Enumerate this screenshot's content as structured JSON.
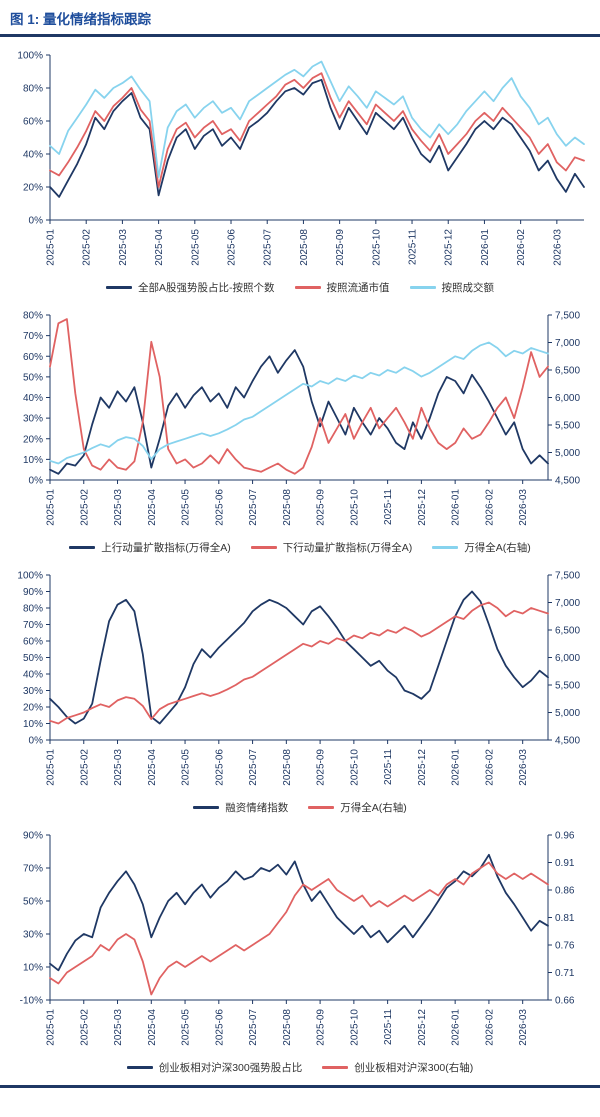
{
  "header": {
    "title": "图 1: 量化情绪指标跟踪"
  },
  "colors": {
    "navy": "#1F3864",
    "red": "#E06262",
    "lightblue": "#87D3EE",
    "title_blue": "#1F4E9C",
    "axis": "#1F3864"
  },
  "chart_data": [
    {
      "type": "line",
      "points_per_month": 4,
      "x_labels": [
        "2025-01",
        "2025-02",
        "2025-03",
        "2025-04",
        "2025-05",
        "2025-06",
        "2025-07",
        "2025-08",
        "2025-09",
        "2025-10",
        "2025-11",
        "2025-12",
        "2026-01",
        "2026-02",
        "2026-03"
      ],
      "left_axis": {
        "min": 0,
        "max": 100,
        "tick_values": [
          0,
          20,
          40,
          60,
          80,
          100
        ],
        "tick_labels": [
          "0%",
          "20%",
          "40%",
          "60%",
          "80%",
          "100%"
        ]
      },
      "series": [
        {
          "name": "全部A股强势股占比-按照个数",
          "color": "#1F3864",
          "axis": "left",
          "values": [
            20,
            14,
            24,
            34,
            46,
            62,
            55,
            66,
            72,
            77,
            62,
            55,
            15,
            36,
            50,
            55,
            43,
            51,
            55,
            45,
            50,
            43,
            56,
            60,
            65,
            72,
            78,
            80,
            76,
            83,
            85,
            68,
            55,
            68,
            60,
            52,
            65,
            60,
            55,
            62,
            50,
            40,
            35,
            45,
            30,
            38,
            46,
            55,
            60,
            55,
            62,
            58,
            50,
            42,
            30,
            36,
            25,
            17,
            28,
            20
          ]
        },
        {
          "name": "按照流通市值",
          "color": "#E06262",
          "axis": "left",
          "values": [
            30,
            27,
            35,
            44,
            54,
            66,
            60,
            69,
            74,
            80,
            67,
            60,
            20,
            43,
            55,
            59,
            50,
            56,
            60,
            52,
            55,
            48,
            60,
            65,
            70,
            75,
            82,
            85,
            80,
            86,
            89,
            74,
            62,
            72,
            65,
            58,
            70,
            65,
            60,
            66,
            55,
            48,
            42,
            52,
            40,
            46,
            52,
            60,
            65,
            60,
            68,
            62,
            56,
            50,
            40,
            46,
            35,
            30,
            38,
            36
          ]
        },
        {
          "name": "按照成交额",
          "color": "#87D3EE",
          "axis": "left",
          "values": [
            45,
            40,
            54,
            62,
            70,
            79,
            74,
            80,
            83,
            87,
            79,
            72,
            26,
            56,
            66,
            70,
            62,
            68,
            72,
            65,
            68,
            61,
            72,
            76,
            80,
            84,
            88,
            91,
            87,
            93,
            96,
            84,
            72,
            81,
            75,
            68,
            78,
            74,
            70,
            75,
            62,
            55,
            50,
            58,
            52,
            58,
            66,
            72,
            78,
            72,
            80,
            86,
            75,
            68,
            58,
            62,
            52,
            45,
            50,
            46
          ]
        }
      ]
    },
    {
      "type": "line",
      "points_per_month": 4,
      "x_labels": [
        "2025-01",
        "2025-02",
        "2025-03",
        "2025-04",
        "2025-05",
        "2025-06",
        "2025-07",
        "2025-08",
        "2025-09",
        "2025-10",
        "2025-11",
        "2025-12",
        "2026-01",
        "2026-02",
        "2026-03"
      ],
      "left_axis": {
        "min": 0,
        "max": 80,
        "tick_values": [
          0,
          10,
          20,
          30,
          40,
          50,
          60,
          70,
          80
        ],
        "tick_labels": [
          "0%",
          "10%",
          "20%",
          "30%",
          "40%",
          "50%",
          "60%",
          "70%",
          "80%"
        ]
      },
      "right_axis": {
        "min": 4500,
        "max": 7500,
        "tick_values": [
          4500,
          5000,
          5500,
          6000,
          6500,
          7000,
          7500
        ],
        "tick_labels": [
          "4,500",
          "5,000",
          "5,500",
          "6,000",
          "6,500",
          "7,000",
          "7,500"
        ]
      },
      "series": [
        {
          "name": "上行动量扩散指标(万得全A)",
          "color": "#1F3864",
          "axis": "left",
          "values": [
            5,
            3,
            8,
            7,
            12,
            27,
            40,
            35,
            43,
            38,
            45,
            28,
            6,
            20,
            36,
            42,
            35,
            41,
            45,
            38,
            42,
            35,
            45,
            40,
            48,
            55,
            60,
            52,
            58,
            63,
            55,
            38,
            26,
            38,
            30,
            22,
            35,
            28,
            22,
            30,
            25,
            18,
            15,
            28,
            20,
            30,
            42,
            50,
            48,
            42,
            51,
            45,
            38,
            30,
            22,
            28,
            15,
            8,
            12,
            8
          ]
        },
        {
          "name": "下行动量扩散指标(万得全A)",
          "color": "#E06262",
          "axis": "left",
          "values": [
            55,
            76,
            78,
            42,
            15,
            7,
            5,
            10,
            6,
            5,
            9,
            28,
            67,
            50,
            15,
            8,
            10,
            6,
            8,
            12,
            8,
            15,
            10,
            6,
            5,
            4,
            6,
            8,
            5,
            3,
            6,
            16,
            30,
            18,
            25,
            32,
            20,
            28,
            35,
            25,
            30,
            35,
            28,
            20,
            35,
            25,
            18,
            15,
            18,
            25,
            20,
            22,
            28,
            35,
            40,
            30,
            45,
            62,
            50,
            55
          ]
        },
        {
          "name": "万得全A(右轴)",
          "color": "#87D3EE",
          "axis": "right",
          "values": [
            4850,
            4800,
            4900,
            4950,
            5000,
            5080,
            5150,
            5100,
            5220,
            5280,
            5250,
            5120,
            4880,
            5060,
            5150,
            5200,
            5250,
            5300,
            5350,
            5300,
            5350,
            5420,
            5500,
            5600,
            5650,
            5750,
            5850,
            5950,
            6050,
            6150,
            6250,
            6200,
            6300,
            6250,
            6350,
            6300,
            6400,
            6350,
            6450,
            6400,
            6500,
            6450,
            6550,
            6480,
            6380,
            6450,
            6550,
            6650,
            6750,
            6700,
            6850,
            6950,
            7000,
            6900,
            6750,
            6850,
            6800,
            6900,
            6850,
            6800
          ]
        }
      ]
    },
    {
      "type": "line",
      "points_per_month": 4,
      "x_labels": [
        "2025-01",
        "2025-02",
        "2025-03",
        "2025-04",
        "2025-05",
        "2025-06",
        "2025-07",
        "2025-08",
        "2025-09",
        "2025-10",
        "2025-11",
        "2025-12",
        "2026-01",
        "2026-02",
        "2026-03"
      ],
      "left_axis": {
        "min": 0,
        "max": 100,
        "tick_values": [
          0,
          10,
          20,
          30,
          40,
          50,
          60,
          70,
          80,
          90,
          100
        ],
        "tick_labels": [
          "0%",
          "10%",
          "20%",
          "30%",
          "40%",
          "50%",
          "60%",
          "70%",
          "80%",
          "90%",
          "100%"
        ]
      },
      "right_axis": {
        "min": 4500,
        "max": 7500,
        "tick_values": [
          4500,
          5000,
          5500,
          6000,
          6500,
          7000,
          7500
        ],
        "tick_labels": [
          "4,500",
          "5,000",
          "5,500",
          "6,000",
          "6,500",
          "7,000",
          "7,500"
        ]
      },
      "series": [
        {
          "name": "融资情绪指数",
          "color": "#1F3864",
          "axis": "left",
          "values": [
            25,
            20,
            14,
            10,
            13,
            22,
            48,
            72,
            82,
            85,
            78,
            52,
            14,
            10,
            16,
            22,
            32,
            46,
            55,
            50,
            56,
            61,
            66,
            71,
            78,
            82,
            85,
            83,
            80,
            75,
            70,
            78,
            81,
            75,
            68,
            60,
            55,
            50,
            45,
            48,
            42,
            38,
            30,
            28,
            25,
            30,
            45,
            60,
            75,
            85,
            90,
            84,
            70,
            55,
            45,
            38,
            32,
            36,
            42,
            38
          ]
        },
        {
          "name": "万得全A(右轴)",
          "color": "#E06262",
          "axis": "right",
          "values": [
            4850,
            4800,
            4900,
            4950,
            5000,
            5080,
            5150,
            5100,
            5220,
            5280,
            5250,
            5120,
            4880,
            5060,
            5150,
            5200,
            5250,
            5300,
            5350,
            5300,
            5350,
            5420,
            5500,
            5600,
            5650,
            5750,
            5850,
            5950,
            6050,
            6150,
            6250,
            6200,
            6300,
            6250,
            6350,
            6300,
            6400,
            6350,
            6450,
            6400,
            6500,
            6450,
            6550,
            6480,
            6380,
            6450,
            6550,
            6650,
            6750,
            6700,
            6850,
            6950,
            7000,
            6900,
            6750,
            6850,
            6800,
            6900,
            6850,
            6800
          ]
        }
      ]
    },
    {
      "type": "line",
      "points_per_month": 4,
      "x_labels": [
        "2025-01",
        "2025-02",
        "2025-03",
        "2025-04",
        "2025-05",
        "2025-06",
        "2025-07",
        "2025-08",
        "2025-09",
        "2025-10",
        "2025-11",
        "2025-12",
        "2026-01",
        "2026-02",
        "2026-03"
      ],
      "left_axis": {
        "min": -10,
        "max": 90,
        "tick_values": [
          -10,
          10,
          30,
          50,
          70,
          90
        ],
        "tick_labels": [
          "-10%",
          "10%",
          "30%",
          "50%",
          "70%",
          "90%"
        ]
      },
      "right_axis": {
        "min": 0.66,
        "max": 0.96,
        "tick_values": [
          0.66,
          0.71,
          0.76,
          0.81,
          0.86,
          0.91,
          0.96
        ],
        "tick_labels": [
          "0.66",
          "0.71",
          "0.76",
          "0.81",
          "0.86",
          "0.91",
          "0.96"
        ]
      },
      "series": [
        {
          "name": "创业板相对沪深300强势股占比",
          "color": "#1F3864",
          "axis": "left",
          "values": [
            12,
            8,
            18,
            26,
            30,
            28,
            46,
            55,
            62,
            68,
            60,
            48,
            28,
            40,
            50,
            55,
            48,
            55,
            60,
            52,
            58,
            62,
            68,
            63,
            65,
            70,
            68,
            72,
            66,
            74,
            60,
            50,
            56,
            48,
            40,
            35,
            30,
            35,
            28,
            32,
            25,
            30,
            35,
            28,
            35,
            42,
            50,
            58,
            62,
            68,
            65,
            70,
            78,
            65,
            55,
            48,
            40,
            32,
            38,
            35
          ]
        },
        {
          "name": "创业板相对沪深300(右轴)",
          "color": "#E06262",
          "axis": "right",
          "values": [
            0.7,
            0.69,
            0.71,
            0.72,
            0.73,
            0.74,
            0.76,
            0.75,
            0.77,
            0.78,
            0.77,
            0.73,
            0.67,
            0.7,
            0.72,
            0.73,
            0.72,
            0.73,
            0.74,
            0.73,
            0.74,
            0.75,
            0.76,
            0.75,
            0.76,
            0.77,
            0.78,
            0.8,
            0.82,
            0.85,
            0.87,
            0.86,
            0.87,
            0.88,
            0.86,
            0.85,
            0.84,
            0.85,
            0.83,
            0.84,
            0.83,
            0.84,
            0.85,
            0.84,
            0.85,
            0.86,
            0.85,
            0.87,
            0.88,
            0.87,
            0.89,
            0.9,
            0.91,
            0.89,
            0.88,
            0.89,
            0.88,
            0.89,
            0.88,
            0.87
          ]
        }
      ]
    }
  ]
}
